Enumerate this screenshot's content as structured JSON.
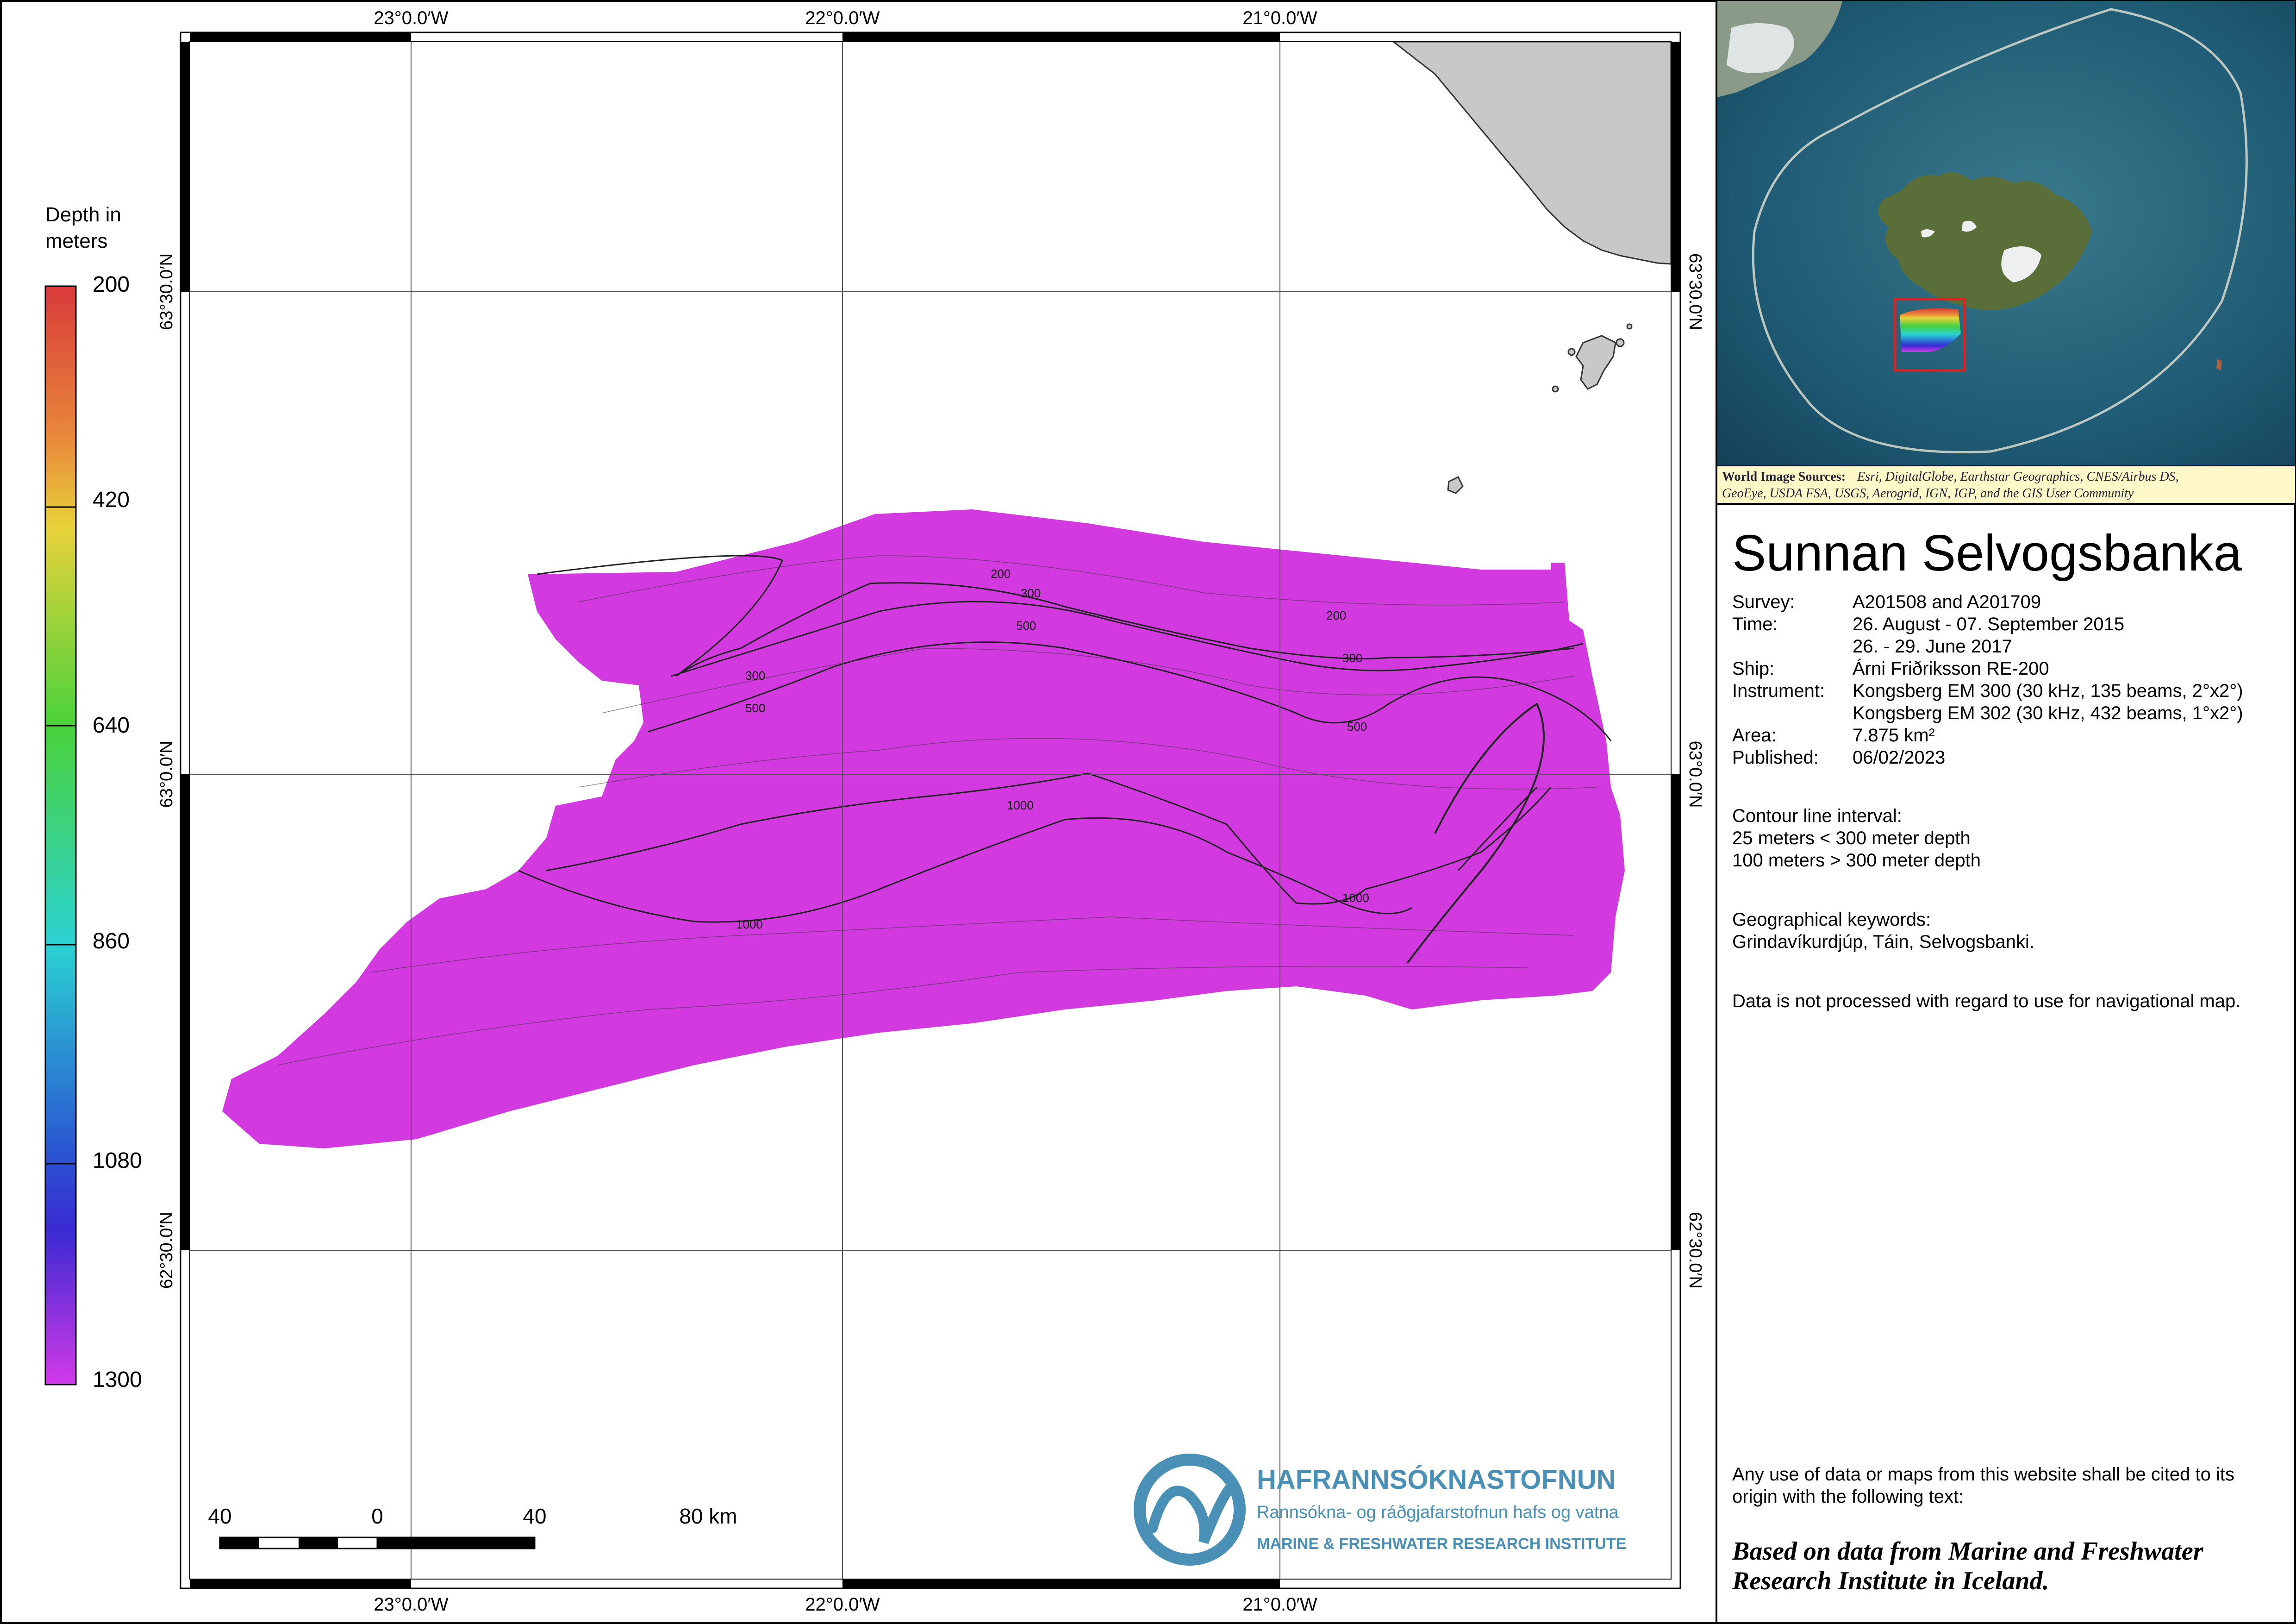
{
  "map": {
    "top_lon_labels": [
      "23°0.0′W",
      "22°0.0′W",
      "21°0.0′W"
    ],
    "bottom_lon_labels": [
      "23°0.0′W",
      "22°0.0′W",
      "21°0.0′W"
    ],
    "left_lat_labels": [
      "63°30.0′N",
      "63°0.0′N",
      "62°30.0′N"
    ],
    "right_lat_labels": [
      "63°30.0′N",
      "63°0.0′N",
      "62°30.0′N"
    ],
    "contour_labels": [
      "200",
      "300",
      "500",
      "1000",
      "200",
      "300",
      "500",
      "300",
      "500",
      "1000",
      "1000"
    ]
  },
  "legend": {
    "title_line1": "Depth  in",
    "title_line2": "meters",
    "ticks": [
      "200",
      "420",
      "640",
      "860",
      "1080",
      "1300"
    ],
    "colors": [
      "#d93a3a",
      "#e88a3a",
      "#e8d23a",
      "#4ad23a",
      "#2ad2d2",
      "#2a5ad2",
      "#3a2ad2",
      "#d23ae8"
    ]
  },
  "scale_bar": {
    "labels": [
      "40",
      "0",
      "40",
      "80 km"
    ]
  },
  "logo": {
    "name": "HAFRANNSÓKNASTOFNUN",
    "subtitle": "Rannsókna- og ráðgjafarstofnun hafs og vatna",
    "english": "MARINE & FRESHWATER RESEARCH INSTITUTE",
    "color": "#4a8fb5"
  },
  "inset": {
    "source_label": "World Image Sources:",
    "source_text_line1": "Esri, DigitalGlobe, Earthstar Geographics, CNES/Airbus DS,",
    "source_text_line2": "GeoEye, USDA FSA, USGS, Aerogrid, IGN, IGP, and the GIS User Community"
  },
  "info": {
    "title": "Sunnan Selvogsbanka",
    "rows": [
      {
        "key": "Survey:",
        "value": "A201508 and A201709"
      },
      {
        "key": "Time:",
        "value": "26. August - 07. September 2015"
      },
      {
        "key": "",
        "value": "26. - 29. June 2017"
      },
      {
        "key": "Ship:",
        "value": "Árni Friðriksson RE-200"
      },
      {
        "key": "Instrument:",
        "value": "Kongsberg EM 300 (30 kHz, 135 beams, 2°x2°)"
      },
      {
        "key": "",
        "value": "Kongsberg EM 302 (30 kHz, 432 beams, 1°x2°)"
      },
      {
        "key": "Area:",
        "value": "7.875 km²"
      },
      {
        "key": "Published:",
        "value": "06/02/2023"
      }
    ],
    "contour_heading": "Contour line interval:",
    "contour_line1": "25 meters < 300 meter depth",
    "contour_line2": "100 meters > 300 meter depth",
    "keywords_heading": "Geographical keywords:",
    "keywords": "Grindavíkurdjúp, Táin, Selvogsbanki.",
    "nav_disclaimer": "Data is not processed with regard to use for navigational map.",
    "citation_intro_line1": "Any use of data or maps from this website shall be cited to its",
    "citation_intro_line2": "origin with the following text:",
    "citation_line1": "Based on data from Marine and Freshwater",
    "citation_line2": "Research Institute in Iceland."
  }
}
